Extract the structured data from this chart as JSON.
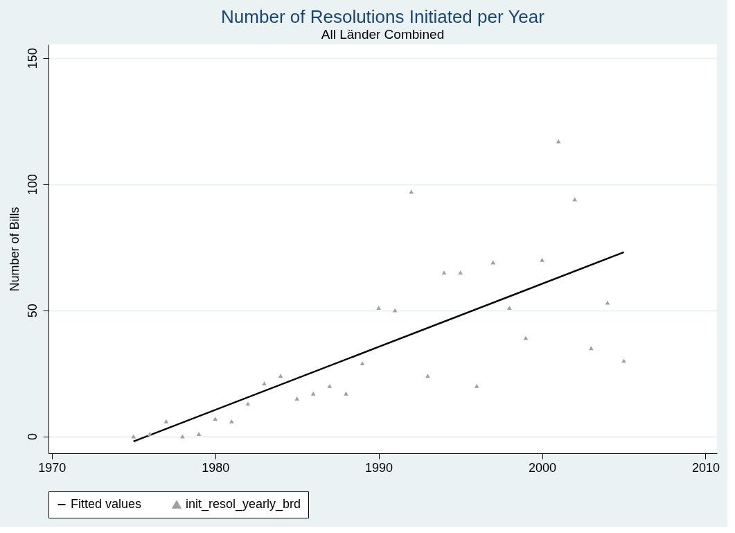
{
  "chart_data": {
    "type": "scatter",
    "title": "Number of Resolutions Initiated per Year",
    "subtitle": "All Länder Combined",
    "ylabel": "Number of Bills",
    "xlim": [
      1969.8,
      2010.7
    ],
    "xticks": [
      1970,
      1980,
      1990,
      2000,
      2010
    ],
    "ylim": [
      -6.7,
      155.4
    ],
    "yticks": [
      0,
      50,
      100,
      150
    ],
    "grid": "y",
    "legend": "bottom",
    "series": [
      {
        "name": "Fitted values",
        "type": "line",
        "color": "#000000",
        "marker": "none",
        "line_style": "solid",
        "x": [
          1975,
          2005
        ],
        "values": [
          -2,
          73
        ]
      },
      {
        "name": "init_resol_yearly_brd",
        "color": "#a0a0a0",
        "marker": "triangle",
        "x": [
          1975,
          1976,
          1977,
          1978,
          1979,
          1980,
          1981,
          1982,
          1983,
          1984,
          1985,
          1986,
          1987,
          1988,
          1989,
          1990,
          1991,
          1992,
          1993,
          1994,
          1995,
          1996,
          1997,
          1998,
          1999,
          2000,
          2001,
          2002,
          2003,
          2004,
          2005
        ],
        "values": [
          0,
          1,
          6,
          0,
          1,
          7,
          6,
          13,
          21,
          24,
          15,
          17,
          20,
          17,
          29,
          51,
          50,
          97,
          24,
          65,
          65,
          20,
          69,
          51,
          39,
          70,
          117,
          94,
          35,
          53,
          30
        ]
      }
    ]
  }
}
